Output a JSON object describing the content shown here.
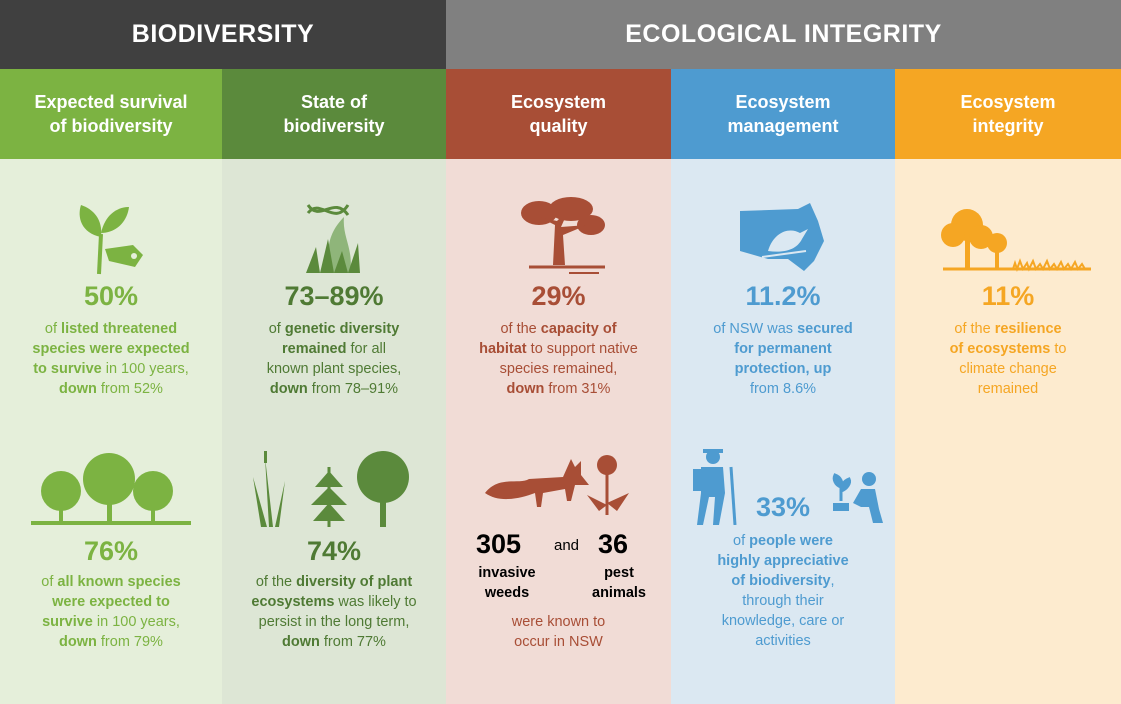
{
  "headers": {
    "biodiversity": "BIODIVERSITY",
    "ecological_integrity": "ECOLOGICAL INTEGRITY"
  },
  "colors": {
    "bio_dark": "#404040",
    "eco_gray": "#808080",
    "green_light": "#7cb342",
    "green_dark": "#5b8a3c",
    "red": "#a84e36",
    "blue": "#4e9bd0",
    "orange": "#f5a623"
  },
  "columns": [
    {
      "title": [
        "Expected survival",
        "of biodiversity"
      ],
      "icons": [
        "seedling-tag-icon",
        "trees-icon"
      ],
      "stat1": "50%",
      "desc1": {
        "a": "of ",
        "b1": "listed threatened",
        "b2": "species were expected",
        "b3": "to survive",
        "c": " in 100 years,",
        "d": "down",
        "e": " from 52%"
      },
      "stat2": "76%",
      "desc2": {
        "a": "of ",
        "b1": "all known species",
        "b2": "were expected to",
        "b3": "survive",
        "c": " in 100 years,",
        "d": "down",
        "e": " from 79%"
      }
    },
    {
      "title": [
        "State of",
        "biodiversity"
      ],
      "icons": [
        "dna-grass-icon",
        "plants-icon"
      ],
      "stat1": "73–89%",
      "desc1": {
        "a": "of ",
        "b1": "genetic diversity",
        "b2": "remained",
        "c": " for all",
        "l3": "known plant species,",
        "d": "down",
        "e": " from 78–91%"
      },
      "stat2": "74%",
      "desc2": {
        "a": "of the ",
        "b1": "diversity of plant",
        "b2": "ecosystems",
        "c": " was likely to",
        "l3": "persist in the long term,",
        "d": "down",
        "e": " from 77%"
      }
    },
    {
      "title": [
        "Ecosystem",
        "quality"
      ],
      "icons": [
        "tree-habitat-icon",
        "fox-weed-icon"
      ],
      "stat1": "29%",
      "desc1": {
        "a": "of the ",
        "b1": "capacity of",
        "b2": "habitat",
        "c": " to support native",
        "l3": "species remained,",
        "d": "down",
        "e": " from 31%"
      },
      "pair": {
        "num1": "305",
        "lbl1a": "invasive",
        "lbl1b": "weeds",
        "and": "and",
        "num2": "36",
        "lbl2a": "pest",
        "lbl2b": "animals",
        "tail1": "were known to",
        "tail2": "occur in NSW"
      }
    },
    {
      "title": [
        "Ecosystem",
        "management"
      ],
      "icons": [
        "nsw-map-bird-icon",
        "hiker-planter-icon"
      ],
      "stat1": "11.2%",
      "desc1": {
        "a": "of NSW was ",
        "b1": "secured",
        "b2": "for permanent",
        "b3": "protection, up",
        "e": "from 8.6%"
      },
      "stat2": "33%",
      "desc2": {
        "a": "of ",
        "b1": "people were",
        "b2": "highly appreciative",
        "b3": "of biodiversity",
        "c": ",",
        "l4": "through their",
        "l5": "knowledge, care or",
        "l6": "activities"
      }
    },
    {
      "title": [
        "Ecosystem",
        "integrity"
      ],
      "icons": [
        "trees-landscape-icon"
      ],
      "stat1": "11%",
      "desc1": {
        "a": "of the ",
        "b1": "resilience",
        "b2": "of ecosystems",
        "c": " to",
        "l3": "climate change",
        "l4": "remained"
      }
    }
  ]
}
